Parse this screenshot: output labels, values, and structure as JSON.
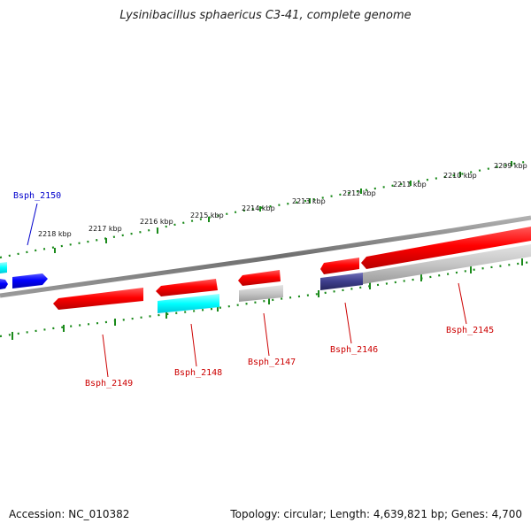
{
  "title": "Lysinibacillus sphaericus C3-41, complete genome",
  "footer": {
    "accession": "Accession: NC_010382",
    "summary": "Topology: circular; Length: 4,639,821 bp; Genes: 4,700"
  },
  "ticks": [
    "2218 kbp",
    "2217 kbp",
    "2216 kbp",
    "2215 kbp",
    "2214 kbp",
    "2213 kbp",
    "2212 kbp",
    "2211 kbp",
    "2210 kbp",
    "2209 kbp"
  ],
  "genes": [
    {
      "name": "Bsph_2150",
      "color": "#0000cc"
    },
    {
      "name": "Bsph_2149",
      "color": "#cc0000"
    },
    {
      "name": "Bsph_2148",
      "color": "#cc0000"
    },
    {
      "name": "Bsph_2147",
      "color": "#cc0000"
    },
    {
      "name": "Bsph_2146",
      "color": "#cc0000"
    },
    {
      "name": "Bsph_2145",
      "color": "#cc0000"
    }
  ]
}
